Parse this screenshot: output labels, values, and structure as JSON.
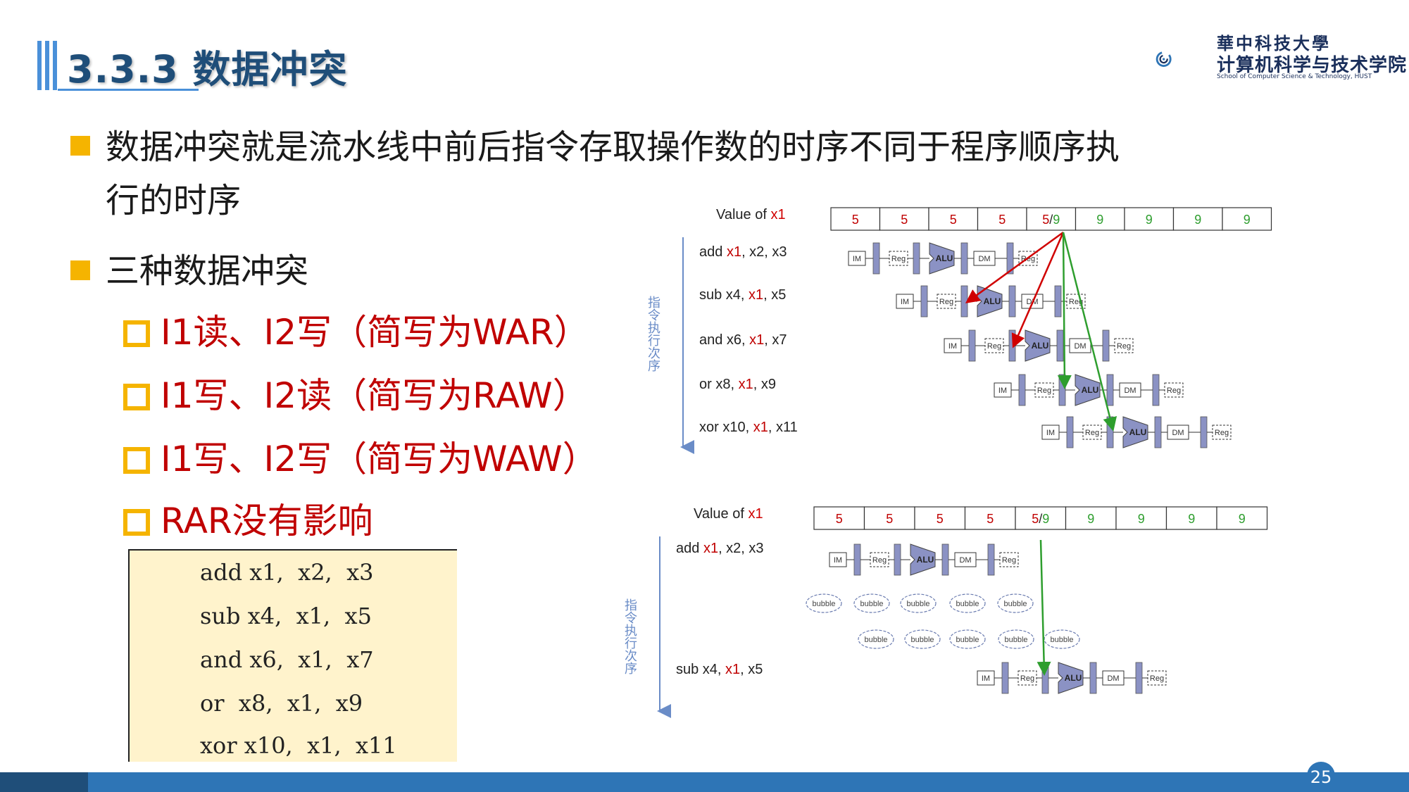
{
  "header": {
    "title": "3.3.3 数据冲突"
  },
  "logo": {
    "university": "華中科技大學",
    "school": "计算机科学与技术学院",
    "school_en": "School of Computer Science & Technology, HUST"
  },
  "bullets": {
    "b1_line1": "数据冲突就是流水线中前后指令存取操作数的时序不同于程序顺序执",
    "b1_line2": "行的时序",
    "b2": "三种数据冲突",
    "sub": [
      "I1读、I2写（简写为WAR）",
      "I1写、I2读（简写为RAW）",
      "I1写、I2写（简写为WAW）",
      "RAR没有影响"
    ]
  },
  "code_lines": [
    "add x1,  x2,  x3",
    "sub x4,  x1,  x5",
    "and x6,  x1,  x7",
    "or  x8,  x1,  x9",
    "xor x10,  x1,  x11"
  ],
  "diagram_top": {
    "value_label": "Value of ",
    "value_reg": "x1",
    "values": [
      "5",
      "5",
      "5",
      "5",
      "5/9",
      "9",
      "9",
      "9",
      "9"
    ],
    "axis_label": "指令执行次序",
    "instructions": [
      {
        "op": "add ",
        "reg": "x1",
        "rest": ", x2, x3"
      },
      {
        "op": "sub x4, ",
        "reg": "x1",
        "rest": ", x5"
      },
      {
        "op": "and x6, ",
        "reg": "x1",
        "rest": ", x7"
      },
      {
        "op": "or   x8, ",
        "reg": "x1",
        "rest": ", x9"
      },
      {
        "op": "xor x10, ",
        "reg": "x1",
        "rest": ", x11"
      }
    ]
  },
  "diagram_bottom": {
    "value_label": "Value of ",
    "value_reg": "x1",
    "values": [
      "5",
      "5",
      "5",
      "5",
      "5/9",
      "9",
      "9",
      "9",
      "9"
    ],
    "axis_label": "指令执行次序",
    "instructions": [
      {
        "op": "add ",
        "reg": "x1",
        "rest": ", x2, x3"
      },
      {
        "op": "sub x4, ",
        "reg": "x1",
        "rest": ", x5"
      }
    ],
    "bubble": "bubble"
  },
  "stage_labels": {
    "im": "IM",
    "reg": "Reg",
    "alu": "ALU",
    "dm": "DM"
  },
  "colors": {
    "accent": "#f5b400",
    "title": "#1f4e79",
    "red": "#c00000",
    "green": "#2e9e2e",
    "stage": "#8b92c4"
  },
  "footer": {
    "page_number": "25"
  }
}
